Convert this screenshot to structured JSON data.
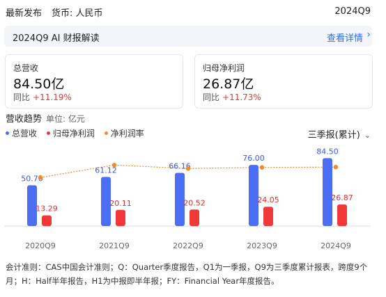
{
  "header": {
    "latest": "最新发布",
    "currency": "货币: 人民币",
    "period": "2024Q9"
  },
  "ai_bar": {
    "title": "2024Q9 AI 财报解读",
    "link": "查看详情",
    "chevron_icon": "chevron-right-icon"
  },
  "cards": [
    {
      "label": "总营收",
      "value": "84.50亿",
      "yoy_label": "同比",
      "yoy_value": "+11.19%"
    },
    {
      "label": "归母净利润",
      "value": "26.87亿",
      "yoy_label": "同比",
      "yoy_value": "+11.73%"
    }
  ],
  "trend": {
    "title": "营收趋势",
    "unit": "单位: 亿元",
    "period_selector": "三季报(累计)",
    "chevron_icon": "chevron-down-icon"
  },
  "chart_data": {
    "type": "bar",
    "categories": [
      "2020Q9",
      "2021Q9",
      "2022Q9",
      "2023Q9",
      "2024Q9"
    ],
    "series": [
      {
        "name": "总营收",
        "type": "bar",
        "color": "#4b6ef5",
        "values": [
          50.7,
          61.12,
          66.16,
          76.0,
          84.5
        ]
      },
      {
        "name": "归母净利润",
        "type": "bar",
        "color": "#f03838",
        "values": [
          13.29,
          20.11,
          20.52,
          24.05,
          26.87
        ]
      },
      {
        "name": "净利润率",
        "type": "line",
        "color": "#f08a2a",
        "values": [
          26.2,
          32.9,
          31.0,
          31.6,
          31.8
        ]
      }
    ],
    "ylim": [
      0,
      90
    ],
    "legend": "top-left",
    "grid": false
  },
  "footnote": "会计准则：CAS中国会计准则；Q：Quarter季度报告，Q1为一季报，Q9为三季度累计报表，跨度9个月；H：Half半年报告，H1为中报即半年报；FY：Financial Year年度报告。"
}
